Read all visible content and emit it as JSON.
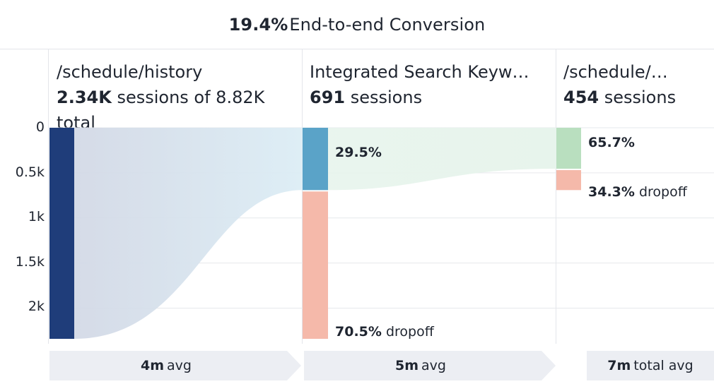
{
  "header": {
    "conversion_value": "19.4%",
    "conversion_label": "End-to-end Conversion"
  },
  "steps": [
    {
      "name": "/schedule/history",
      "count": "2.34K",
      "count_suffix": " sessions of 8.82K total"
    },
    {
      "name": "Integrated Search Keyw…",
      "count": "691",
      "count_suffix": " sessions"
    },
    {
      "name": "/schedule/…",
      "count": "454",
      "count_suffix": " sessions"
    }
  ],
  "bar_labels": {
    "step2_conversion": "29.5%",
    "step2_dropoff_pct": "70.5%",
    "step3_conversion": "65.7%",
    "step3_dropoff_pct": "34.3%",
    "dropoff_word": " dropoff"
  },
  "time_labels": [
    {
      "value": "4m",
      "suffix": " avg"
    },
    {
      "value": "5m",
      "suffix": " avg"
    },
    {
      "value": "7m",
      "suffix": " total avg"
    }
  ],
  "colors": {
    "step1_bar": "#1f3d7a",
    "step2_bar": "#5aa3c8",
    "step3_bar": "#b9dfbf",
    "dropoff": "#f5b9aa",
    "flow1_start": "#d3d9e6",
    "flow1_end": "#dcedf5",
    "flow2": "#e7f4ec"
  },
  "chart_data": {
    "type": "bar",
    "title": "19.4% End-to-end Conversion",
    "categories": [
      "/schedule/history",
      "Integrated Search Keyw…",
      "/schedule/…"
    ],
    "series": [
      {
        "name": "sessions",
        "values": [
          2340,
          691,
          454
        ]
      },
      {
        "name": "dropoff",
        "values": [
          0,
          1649,
          237
        ]
      }
    ],
    "ylim": [
      0,
      2340
    ],
    "yticks": [
      "0",
      "0.5k",
      "1k",
      "1.5k",
      "2k"
    ],
    "ytick_values": [
      0,
      500,
      1000,
      1500,
      2000
    ],
    "y_inverted": true,
    "grid": true
  }
}
